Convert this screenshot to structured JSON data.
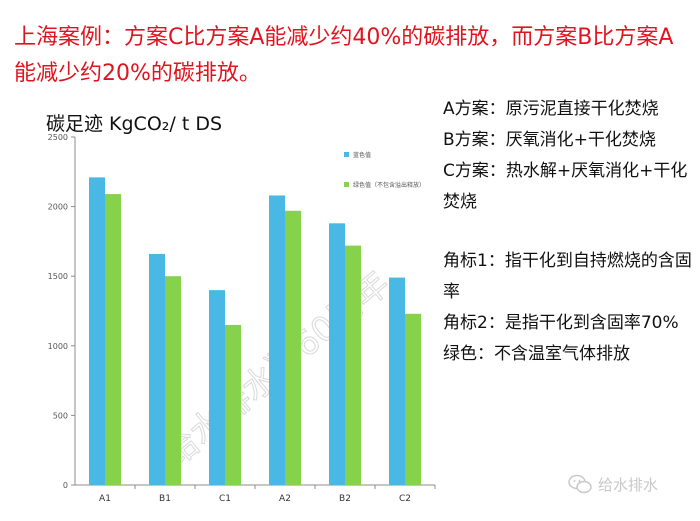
{
  "headline": "上海案例：方案C比方案A能减少约40%的碳排放，而方案B比方案A能减少约20%的碳排放。",
  "chart_data": {
    "type": "bar",
    "title": "碳足迹 KgCO₂/ t DS",
    "categories": [
      "A1",
      "B1",
      "C1",
      "A2",
      "B2",
      "C2"
    ],
    "series": [
      {
        "name": "蓝色值",
        "color": "#49b8e4",
        "values": [
          2210,
          1660,
          1400,
          2080,
          1880,
          1490
        ]
      },
      {
        "name": "绿色值（不包含溢出释放）",
        "color": "#86d24a",
        "values": [
          2090,
          1500,
          1150,
          1970,
          1720,
          1230
        ]
      }
    ],
    "ylim": [
      0,
      2500
    ],
    "yticks": [
      0,
      500,
      1000,
      1500,
      2000,
      2500
    ],
    "grid": false,
    "legend": "top-right"
  },
  "notes": [
    "A方案：原污泥直接干化焚烧",
    "B方案：厌氧消化+干化焚烧",
    "C方案：热水解+厌氧消化+干化焚烧",
    "",
    "角标1：指干化到自持燃烧的含固率",
    "角标2：是指干化到含固率70%",
    "绿色：不含温室气体排放"
  ],
  "watermark": {
    "diagonal": "《给水排水》60周年",
    "corner": "给水排水"
  }
}
